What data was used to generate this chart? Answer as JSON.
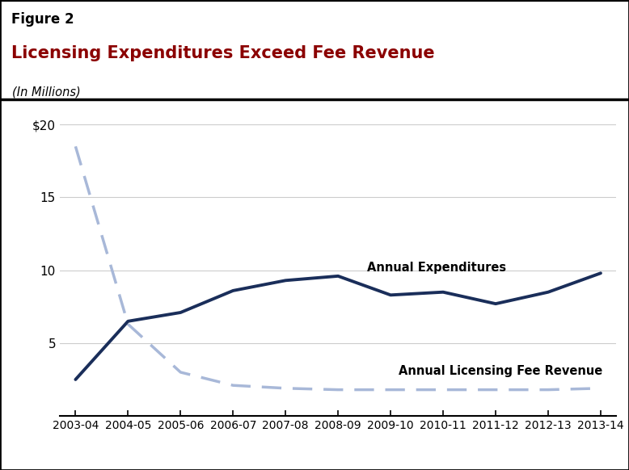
{
  "figure_label": "Figure 2",
  "title": "Licensing Expenditures Exceed Fee Revenue",
  "subtitle": "(In Millions)",
  "title_color": "#8B0000",
  "figure_label_color": "#000000",
  "background_color": "#FFFFFF",
  "x_labels": [
    "2003-04",
    "2004-05",
    "2005-06",
    "2006-07",
    "2007-08",
    "2008-09",
    "2009-10",
    "2010-11",
    "2011-12",
    "2012-13",
    "2013-14"
  ],
  "x_values": [
    0,
    1,
    2,
    3,
    4,
    5,
    6,
    7,
    8,
    9,
    10
  ],
  "expenditures": [
    2.5,
    6.5,
    7.1,
    8.6,
    9.3,
    9.6,
    8.3,
    8.5,
    7.7,
    8.5,
    9.8
  ],
  "fee_revenue_dashed": [
    18.5,
    6.3,
    3.0,
    2.1,
    1.9,
    1.8,
    1.8,
    1.8,
    1.8,
    1.8,
    1.9
  ],
  "expenditures_color": "#1a2e5a",
  "fee_revenue_color": "#a8b8d8",
  "ylim": [
    0,
    20
  ],
  "yticks": [
    0,
    5,
    10,
    15,
    20
  ],
  "ytick_labels": [
    "",
    "5",
    "10",
    "15",
    "$20"
  ],
  "grid_color": "#cccccc",
  "expenditures_label": "Annual Expenditures",
  "fee_revenue_label": "Annual Licensing Fee Revenue"
}
